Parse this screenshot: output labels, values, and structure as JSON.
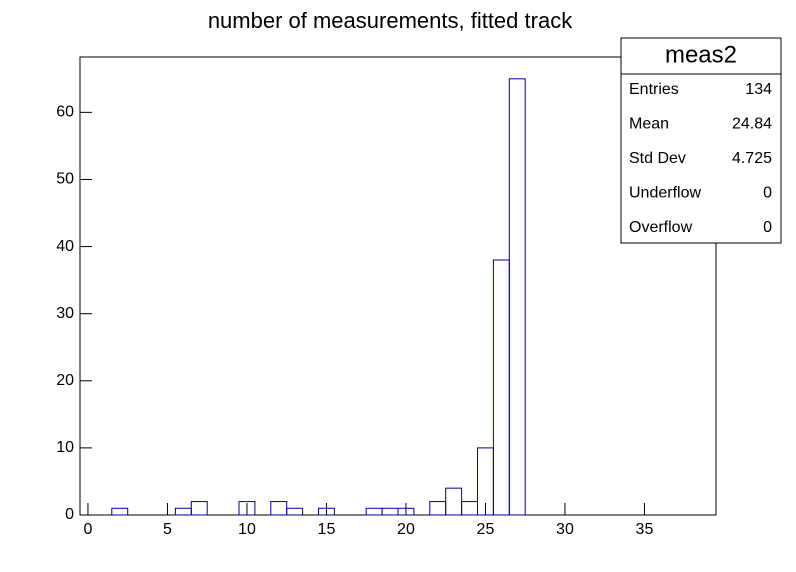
{
  "chart_data": {
    "type": "histogram",
    "title": "number of measurements, fitted track",
    "bins": [
      -0.5,
      0.5,
      1.5,
      2.5,
      3.5,
      4.5,
      5.5,
      6.5,
      7.5,
      8.5,
      9.5,
      10.5,
      11.5,
      12.5,
      13.5,
      14.5,
      15.5,
      16.5,
      17.5,
      18.5,
      19.5,
      20.5,
      21.5,
      22.5,
      23.5,
      24.5,
      25.5,
      26.5,
      27.5,
      28.5,
      29.5,
      30.5,
      31.5,
      32.5,
      33.5,
      34.5,
      35.5,
      36.5,
      37.5,
      38.5,
      39.5
    ],
    "values": [
      0,
      0,
      1,
      0,
      0,
      0,
      1,
      2,
      0,
      0,
      2,
      0,
      2,
      1,
      0,
      1,
      0,
      0,
      1,
      1,
      1,
      0,
      2,
      4,
      2,
      10,
      38,
      65,
      0,
      0,
      0,
      0,
      0,
      0,
      0,
      0,
      0,
      0,
      0,
      0
    ],
    "color": "#000099",
    "xlim": [
      -0.5,
      39.5
    ],
    "xticks": [
      0,
      5,
      10,
      15,
      20,
      25,
      30,
      35
    ],
    "ylim": [
      0,
      68.25
    ],
    "yticks": [
      0,
      10,
      20,
      30,
      40,
      50,
      60
    ],
    "stats": {
      "title": "meas2",
      "rows": [
        [
          "Entries",
          "134"
        ],
        [
          "Mean",
          "24.84"
        ],
        [
          "Std Dev",
          "4.725"
        ],
        [
          "Underflow",
          "0"
        ],
        [
          "Overflow",
          "0"
        ]
      ]
    }
  }
}
